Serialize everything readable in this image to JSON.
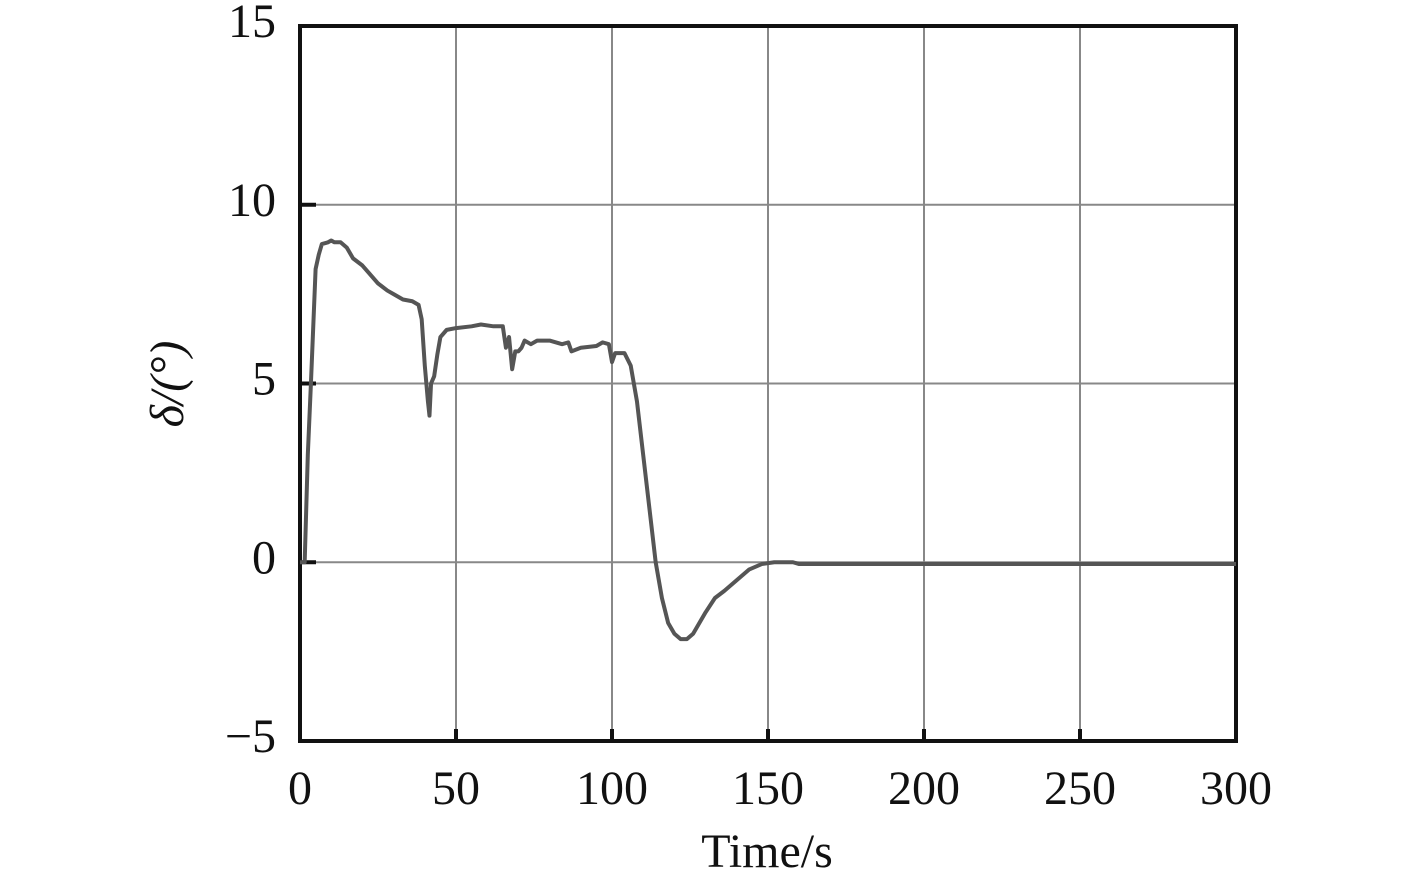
{
  "chart_data": {
    "type": "line",
    "xlabel": "Time/s",
    "ylabel": "δ/(°)",
    "xlim": [
      0,
      300
    ],
    "ylim": [
      -5,
      15
    ],
    "xticks": [
      0,
      50,
      100,
      150,
      200,
      250,
      300
    ],
    "yticks": [
      {
        "value": -5,
        "label": "−5"
      },
      0,
      5,
      10,
      15
    ],
    "grid": true,
    "series": [
      {
        "color": "#555555",
        "x": [
          0,
          1.5,
          2.5,
          3.5,
          5,
          6,
          7,
          9,
          10,
          11,
          13,
          15,
          17,
          20,
          22,
          25,
          28,
          30,
          33,
          36,
          38,
          39,
          40,
          41,
          41.5,
          42,
          43,
          44,
          45,
          47,
          50,
          55,
          58,
          62,
          65,
          66,
          67,
          68,
          69,
          70,
          71,
          72,
          74,
          76,
          80,
          84,
          86,
          87,
          90,
          95,
          97,
          99,
          100,
          101,
          104,
          106,
          108,
          110,
          112,
          114,
          116,
          118,
          120,
          122,
          124,
          126,
          128,
          130,
          133,
          136,
          140,
          144,
          148,
          152,
          158,
          160,
          200,
          250,
          300
        ],
        "values": [
          0,
          0,
          3,
          5,
          8.2,
          8.6,
          8.9,
          8.95,
          9.0,
          8.95,
          8.95,
          8.8,
          8.5,
          8.3,
          8.1,
          7.8,
          7.6,
          7.5,
          7.35,
          7.3,
          7.2,
          6.8,
          5.5,
          4.5,
          4.1,
          5.0,
          5.2,
          5.8,
          6.3,
          6.5,
          6.55,
          6.6,
          6.65,
          6.6,
          6.6,
          6.0,
          6.3,
          5.4,
          5.9,
          5.9,
          6.0,
          6.2,
          6.1,
          6.2,
          6.2,
          6.1,
          6.15,
          5.9,
          6.0,
          6.05,
          6.15,
          6.1,
          5.6,
          5.85,
          5.85,
          5.5,
          4.5,
          3,
          1.5,
          0,
          -1,
          -1.7,
          -2.0,
          -2.15,
          -2.15,
          -2.0,
          -1.7,
          -1.4,
          -1.0,
          -0.8,
          -0.5,
          -0.2,
          -0.05,
          0,
          0,
          -0.05,
          -0.05,
          -0.05,
          -0.05
        ]
      }
    ]
  }
}
